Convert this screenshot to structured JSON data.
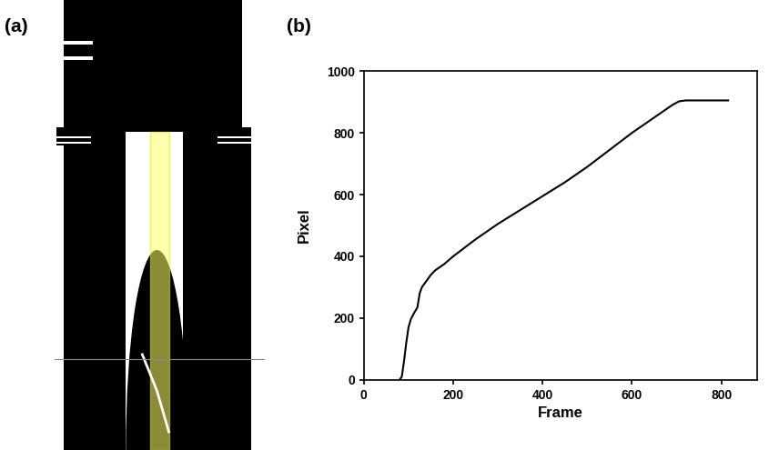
{
  "chart_data": [
    {
      "type": "image",
      "title": "(a)"
    },
    {
      "type": "line",
      "title": "(b)",
      "x_label": "Frame",
      "y_label": "Pixel",
      "x": [
        80,
        85,
        90,
        95,
        100,
        105,
        110,
        120,
        125,
        130,
        140,
        150,
        160,
        180,
        200,
        250,
        300,
        350,
        400,
        450,
        500,
        550,
        600,
        650,
        690,
        705,
        720,
        815
      ],
      "values": [
        0,
        10,
        60,
        120,
        170,
        195,
        210,
        235,
        280,
        300,
        320,
        340,
        355,
        375,
        400,
        455,
        505,
        550,
        595,
        640,
        690,
        745,
        800,
        850,
        890,
        902,
        905,
        905
      ],
      "color": "#000000",
      "xlim": [
        0,
        880
      ],
      "xticks": [
        0,
        200,
        400,
        600,
        800
      ],
      "ylim": [
        0,
        1000
      ],
      "yticks": [
        0,
        200,
        400,
        600,
        800,
        1000
      ]
    }
  ]
}
